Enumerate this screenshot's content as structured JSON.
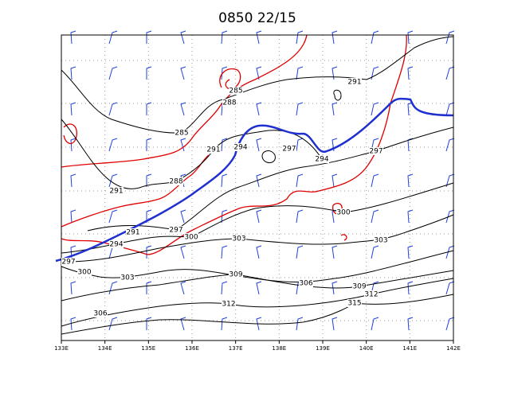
{
  "title": "0850 22/15",
  "x_axis": {
    "labels": [
      "133E",
      "134E",
      "135E",
      "136E",
      "137E",
      "138E",
      "139E",
      "140E",
      "141E",
      "142E"
    ]
  },
  "contour_labels": [
    "291",
    "285",
    "288",
    "285",
    "291",
    "294",
    "297",
    "294",
    "297",
    "288",
    "291",
    "300",
    "291",
    "297",
    "300",
    "294",
    "303",
    "303",
    "297",
    "300",
    "303",
    "309",
    "306",
    "309",
    "312",
    "312",
    "306",
    "315"
  ]
}
